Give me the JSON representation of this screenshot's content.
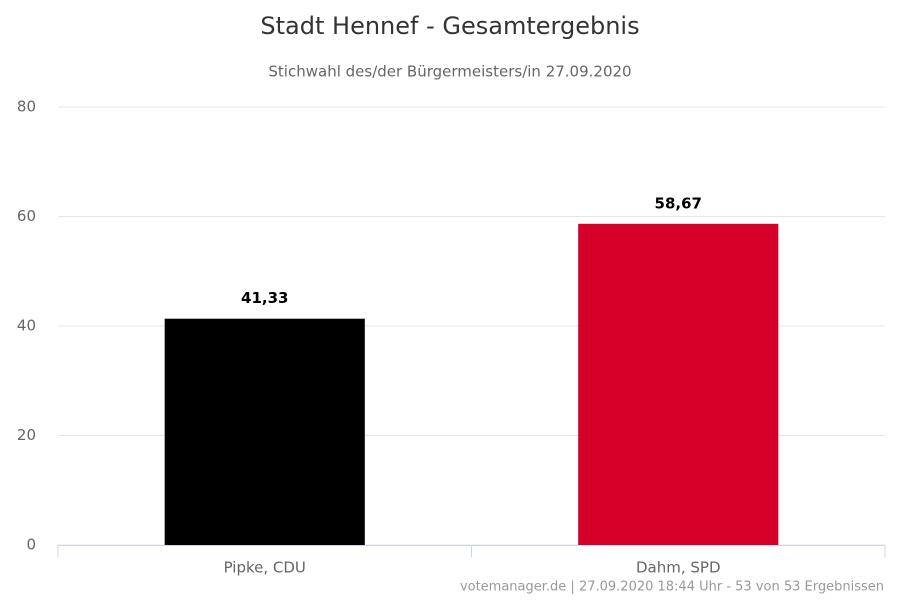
{
  "chart_data": {
    "type": "bar",
    "title": "Stadt Hennef - Gesamtergebnis",
    "subtitle": "Stichwahl des/der Bürgermeisters/in 27.09.2020",
    "credits": "votemanager.de | 27.09.2020 18:44 Uhr - 53 von 53 Ergebnissen",
    "categories": [
      "Pipke, CDU",
      "Dahm, SPD"
    ],
    "values": [
      41.33,
      58.67
    ],
    "value_labels": [
      "41,33",
      "58,67"
    ],
    "colors": [
      "#000000",
      "#d50029"
    ],
    "ylim": [
      0,
      80
    ],
    "yticks": [
      0,
      20,
      40,
      60,
      80
    ],
    "grid": true
  }
}
